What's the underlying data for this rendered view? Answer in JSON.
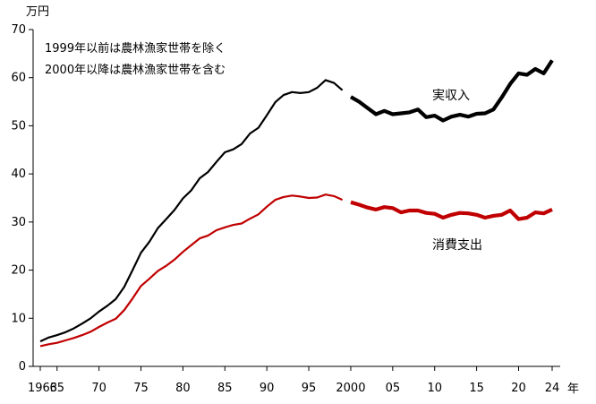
{
  "chart_data": {
    "type": "line",
    "title": "",
    "ylabel": "万円",
    "xlabel": "年",
    "ylim": [
      0,
      70
    ],
    "yticks": [
      0,
      10,
      20,
      30,
      40,
      50,
      60,
      70
    ],
    "xticks": [
      {
        "x": 1963,
        "label": "1963"
      },
      {
        "x": 1965,
        "label": "65"
      },
      {
        "x": 1970,
        "label": "70"
      },
      {
        "x": 1975,
        "label": "75"
      },
      {
        "x": 1980,
        "label": "80"
      },
      {
        "x": 1985,
        "label": "85"
      },
      {
        "x": 1990,
        "label": "90"
      },
      {
        "x": 1995,
        "label": "95"
      },
      {
        "x": 2000,
        "label": "2000"
      },
      {
        "x": 2005,
        "label": "05"
      },
      {
        "x": 2010,
        "label": "10"
      },
      {
        "x": 2015,
        "label": "15"
      },
      {
        "x": 2020,
        "label": "20"
      },
      {
        "x": 2024,
        "label": "24"
      }
    ],
    "xlim": [
      1963,
      2024
    ],
    "grid": false,
    "notes": [
      "1999年以前は農林漁家世帯を除く",
      "2000年以降は農林漁家世帯を含む"
    ],
    "series": [
      {
        "name": "実収入",
        "color": "#000000",
        "x": [
          1963,
          1964,
          1965,
          1966,
          1967,
          1968,
          1969,
          1970,
          1971,
          1972,
          1973,
          1974,
          1975,
          1976,
          1977,
          1978,
          1979,
          1980,
          1981,
          1982,
          1983,
          1984,
          1985,
          1986,
          1987,
          1988,
          1989,
          1990,
          1991,
          1992,
          1993,
          1994,
          1995,
          1996,
          1997,
          1998,
          1999,
          2000,
          2001,
          2002,
          2003,
          2004,
          2005,
          2006,
          2007,
          2008,
          2009,
          2010,
          2011,
          2012,
          2013,
          2014,
          2015,
          2016,
          2017,
          2018,
          2019,
          2020,
          2021,
          2022,
          2023,
          2024
        ],
        "values": [
          5.2,
          6.0,
          6.5,
          7.1,
          7.9,
          8.9,
          10.0,
          11.4,
          12.6,
          14.0,
          16.5,
          20.0,
          23.6,
          25.9,
          28.7,
          30.6,
          32.5,
          34.9,
          36.6,
          39.1,
          40.4,
          42.5,
          44.5,
          45.1,
          46.2,
          48.4,
          49.6,
          52.2,
          54.9,
          56.4,
          57.0,
          56.8,
          57.0,
          57.9,
          59.5,
          58.9,
          57.4,
          56.0,
          55.0,
          53.7,
          52.4,
          53.1,
          52.4,
          52.6,
          52.8,
          53.4,
          51.8,
          52.1,
          51.1,
          51.9,
          52.3,
          51.9,
          52.5,
          52.6,
          53.4,
          55.9,
          58.7,
          60.9,
          60.6,
          61.8,
          60.9,
          63.6
        ]
      },
      {
        "name": "消費支出",
        "color": "#c00000",
        "x": [
          1963,
          1964,
          1965,
          1966,
          1967,
          1968,
          1969,
          1970,
          1971,
          1972,
          1973,
          1974,
          1975,
          1976,
          1977,
          1978,
          1979,
          1980,
          1981,
          1982,
          1983,
          1984,
          1985,
          1986,
          1987,
          1988,
          1989,
          1990,
          1991,
          1992,
          1993,
          1994,
          1995,
          1996,
          1997,
          1998,
          1999,
          2000,
          2001,
          2002,
          2003,
          2004,
          2005,
          2006,
          2007,
          2008,
          2009,
          2010,
          2011,
          2012,
          2013,
          2014,
          2015,
          2016,
          2017,
          2018,
          2019,
          2020,
          2021,
          2022,
          2023,
          2024
        ],
        "values": [
          4.2,
          4.6,
          4.9,
          5.4,
          5.9,
          6.5,
          7.2,
          8.2,
          9.1,
          9.9,
          11.7,
          14.1,
          16.7,
          18.2,
          19.8,
          20.9,
          22.2,
          23.8,
          25.2,
          26.6,
          27.2,
          28.3,
          28.9,
          29.4,
          29.7,
          30.7,
          31.6,
          33.2,
          34.6,
          35.2,
          35.5,
          35.3,
          35.0,
          35.1,
          35.7,
          35.4,
          34.6,
          34.1,
          33.6,
          33.0,
          32.6,
          33.1,
          32.9,
          32.0,
          32.4,
          32.4,
          31.9,
          31.7,
          30.9,
          31.5,
          31.9,
          31.8,
          31.5,
          30.9,
          31.3,
          31.5,
          32.4,
          30.6,
          30.9,
          32.0,
          31.8,
          32.6
        ]
      }
    ]
  }
}
